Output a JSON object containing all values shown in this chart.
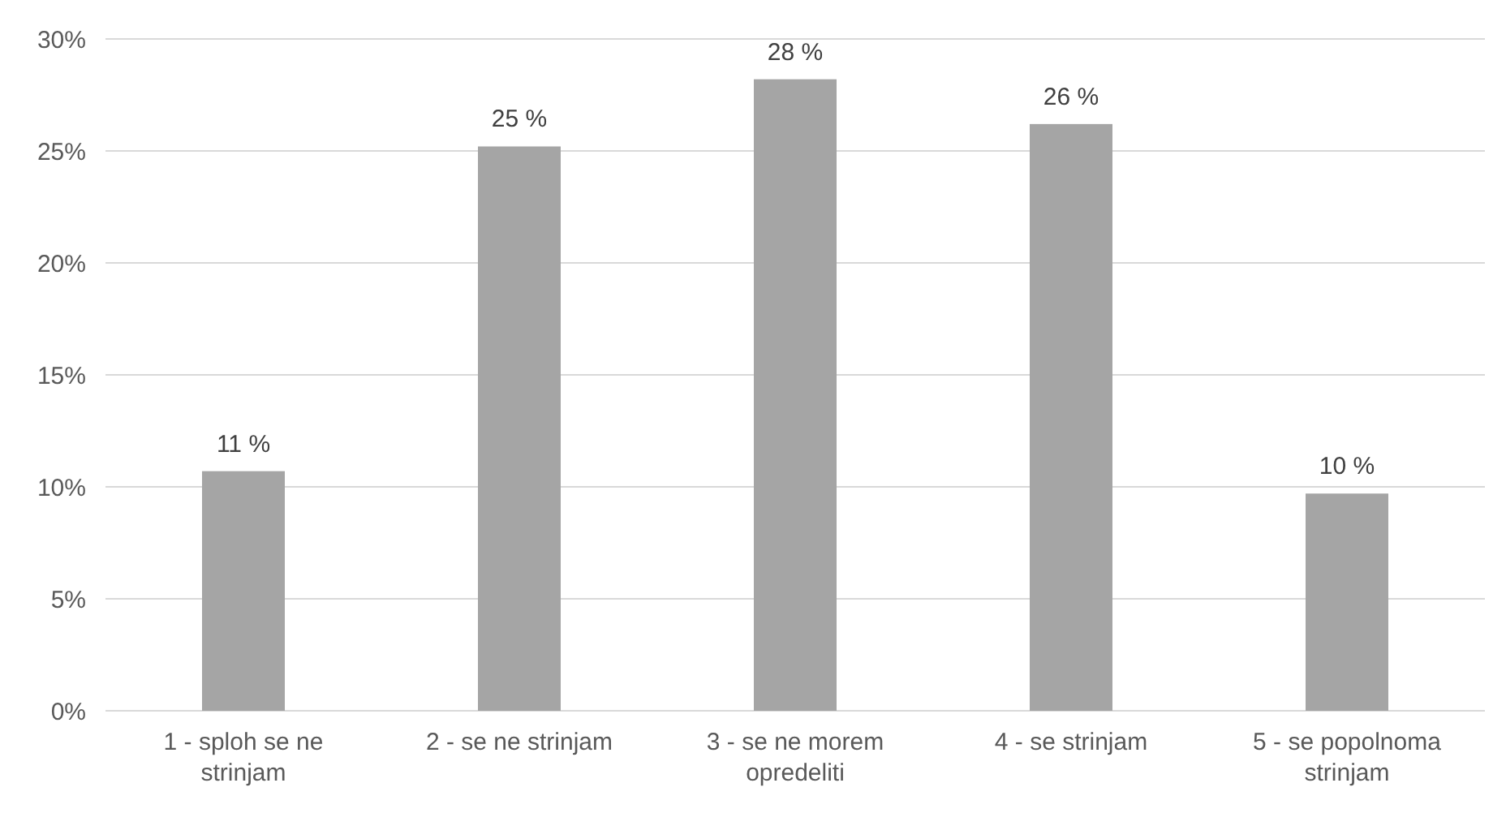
{
  "chart_data": {
    "type": "bar",
    "categories": [
      "1 - sploh se ne strinjam",
      "2 - se ne strinjam",
      "3 - se ne morem opredeliti",
      "4 - se strinjam",
      "5 - se popolnoma strinjam"
    ],
    "values": [
      10.7,
      25.2,
      28.2,
      26.2,
      9.7
    ],
    "value_labels": [
      "11 %",
      "25 %",
      "28 %",
      "26 %",
      "10 %"
    ],
    "color": "#a5a5a5",
    "ylim": [
      0,
      30
    ],
    "yticks": [
      {
        "value": 0,
        "label": "0%"
      },
      {
        "value": 5,
        "label": "5%"
      },
      {
        "value": 10,
        "label": "10%"
      },
      {
        "value": 15,
        "label": "15%"
      },
      {
        "value": 20,
        "label": "20%"
      },
      {
        "value": 25,
        "label": "25%"
      },
      {
        "value": 30,
        "label": "30%"
      }
    ],
    "grid": "y"
  }
}
